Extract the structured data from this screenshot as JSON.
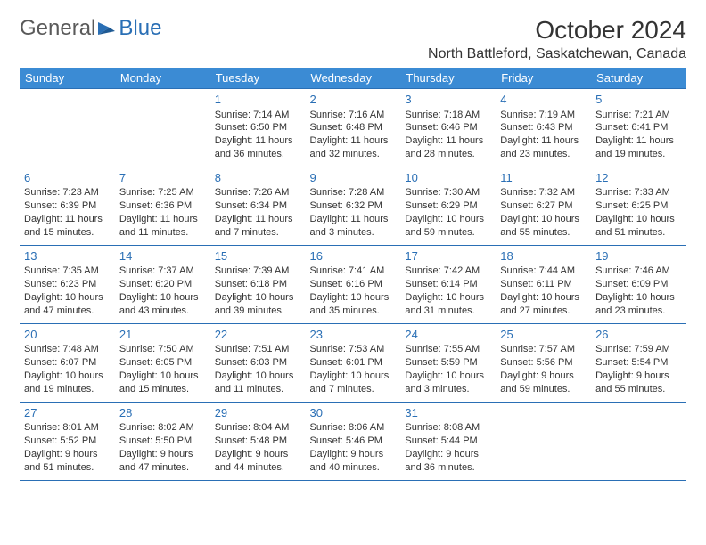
{
  "logo": {
    "text_general": "General",
    "text_blue": "Blue"
  },
  "title": {
    "month": "October 2024",
    "location": "North Battleford, Saskatchewan, Canada"
  },
  "colors": {
    "header_bg": "#3b8bd4",
    "header_text": "#ffffff",
    "cell_border": "#2a6fb5",
    "daynum": "#2a6fb5",
    "body_text": "#333333",
    "logo_gray": "#5a5a5a",
    "logo_blue": "#2a6fb5",
    "background": "#ffffff"
  },
  "daynames": [
    "Sunday",
    "Monday",
    "Tuesday",
    "Wednesday",
    "Thursday",
    "Friday",
    "Saturday"
  ],
  "weeks": [
    [
      {
        "day": "",
        "sunrise": "",
        "sunset": "",
        "daylight": ""
      },
      {
        "day": "",
        "sunrise": "",
        "sunset": "",
        "daylight": ""
      },
      {
        "day": "1",
        "sunrise": "Sunrise: 7:14 AM",
        "sunset": "Sunset: 6:50 PM",
        "daylight": "Daylight: 11 hours and 36 minutes."
      },
      {
        "day": "2",
        "sunrise": "Sunrise: 7:16 AM",
        "sunset": "Sunset: 6:48 PM",
        "daylight": "Daylight: 11 hours and 32 minutes."
      },
      {
        "day": "3",
        "sunrise": "Sunrise: 7:18 AM",
        "sunset": "Sunset: 6:46 PM",
        "daylight": "Daylight: 11 hours and 28 minutes."
      },
      {
        "day": "4",
        "sunrise": "Sunrise: 7:19 AM",
        "sunset": "Sunset: 6:43 PM",
        "daylight": "Daylight: 11 hours and 23 minutes."
      },
      {
        "day": "5",
        "sunrise": "Sunrise: 7:21 AM",
        "sunset": "Sunset: 6:41 PM",
        "daylight": "Daylight: 11 hours and 19 minutes."
      }
    ],
    [
      {
        "day": "6",
        "sunrise": "Sunrise: 7:23 AM",
        "sunset": "Sunset: 6:39 PM",
        "daylight": "Daylight: 11 hours and 15 minutes."
      },
      {
        "day": "7",
        "sunrise": "Sunrise: 7:25 AM",
        "sunset": "Sunset: 6:36 PM",
        "daylight": "Daylight: 11 hours and 11 minutes."
      },
      {
        "day": "8",
        "sunrise": "Sunrise: 7:26 AM",
        "sunset": "Sunset: 6:34 PM",
        "daylight": "Daylight: 11 hours and 7 minutes."
      },
      {
        "day": "9",
        "sunrise": "Sunrise: 7:28 AM",
        "sunset": "Sunset: 6:32 PM",
        "daylight": "Daylight: 11 hours and 3 minutes."
      },
      {
        "day": "10",
        "sunrise": "Sunrise: 7:30 AM",
        "sunset": "Sunset: 6:29 PM",
        "daylight": "Daylight: 10 hours and 59 minutes."
      },
      {
        "day": "11",
        "sunrise": "Sunrise: 7:32 AM",
        "sunset": "Sunset: 6:27 PM",
        "daylight": "Daylight: 10 hours and 55 minutes."
      },
      {
        "day": "12",
        "sunrise": "Sunrise: 7:33 AM",
        "sunset": "Sunset: 6:25 PM",
        "daylight": "Daylight: 10 hours and 51 minutes."
      }
    ],
    [
      {
        "day": "13",
        "sunrise": "Sunrise: 7:35 AM",
        "sunset": "Sunset: 6:23 PM",
        "daylight": "Daylight: 10 hours and 47 minutes."
      },
      {
        "day": "14",
        "sunrise": "Sunrise: 7:37 AM",
        "sunset": "Sunset: 6:20 PM",
        "daylight": "Daylight: 10 hours and 43 minutes."
      },
      {
        "day": "15",
        "sunrise": "Sunrise: 7:39 AM",
        "sunset": "Sunset: 6:18 PM",
        "daylight": "Daylight: 10 hours and 39 minutes."
      },
      {
        "day": "16",
        "sunrise": "Sunrise: 7:41 AM",
        "sunset": "Sunset: 6:16 PM",
        "daylight": "Daylight: 10 hours and 35 minutes."
      },
      {
        "day": "17",
        "sunrise": "Sunrise: 7:42 AM",
        "sunset": "Sunset: 6:14 PM",
        "daylight": "Daylight: 10 hours and 31 minutes."
      },
      {
        "day": "18",
        "sunrise": "Sunrise: 7:44 AM",
        "sunset": "Sunset: 6:11 PM",
        "daylight": "Daylight: 10 hours and 27 minutes."
      },
      {
        "day": "19",
        "sunrise": "Sunrise: 7:46 AM",
        "sunset": "Sunset: 6:09 PM",
        "daylight": "Daylight: 10 hours and 23 minutes."
      }
    ],
    [
      {
        "day": "20",
        "sunrise": "Sunrise: 7:48 AM",
        "sunset": "Sunset: 6:07 PM",
        "daylight": "Daylight: 10 hours and 19 minutes."
      },
      {
        "day": "21",
        "sunrise": "Sunrise: 7:50 AM",
        "sunset": "Sunset: 6:05 PM",
        "daylight": "Daylight: 10 hours and 15 minutes."
      },
      {
        "day": "22",
        "sunrise": "Sunrise: 7:51 AM",
        "sunset": "Sunset: 6:03 PM",
        "daylight": "Daylight: 10 hours and 11 minutes."
      },
      {
        "day": "23",
        "sunrise": "Sunrise: 7:53 AM",
        "sunset": "Sunset: 6:01 PM",
        "daylight": "Daylight: 10 hours and 7 minutes."
      },
      {
        "day": "24",
        "sunrise": "Sunrise: 7:55 AM",
        "sunset": "Sunset: 5:59 PM",
        "daylight": "Daylight: 10 hours and 3 minutes."
      },
      {
        "day": "25",
        "sunrise": "Sunrise: 7:57 AM",
        "sunset": "Sunset: 5:56 PM",
        "daylight": "Daylight: 9 hours and 59 minutes."
      },
      {
        "day": "26",
        "sunrise": "Sunrise: 7:59 AM",
        "sunset": "Sunset: 5:54 PM",
        "daylight": "Daylight: 9 hours and 55 minutes."
      }
    ],
    [
      {
        "day": "27",
        "sunrise": "Sunrise: 8:01 AM",
        "sunset": "Sunset: 5:52 PM",
        "daylight": "Daylight: 9 hours and 51 minutes."
      },
      {
        "day": "28",
        "sunrise": "Sunrise: 8:02 AM",
        "sunset": "Sunset: 5:50 PM",
        "daylight": "Daylight: 9 hours and 47 minutes."
      },
      {
        "day": "29",
        "sunrise": "Sunrise: 8:04 AM",
        "sunset": "Sunset: 5:48 PM",
        "daylight": "Daylight: 9 hours and 44 minutes."
      },
      {
        "day": "30",
        "sunrise": "Sunrise: 8:06 AM",
        "sunset": "Sunset: 5:46 PM",
        "daylight": "Daylight: 9 hours and 40 minutes."
      },
      {
        "day": "31",
        "sunrise": "Sunrise: 8:08 AM",
        "sunset": "Sunset: 5:44 PM",
        "daylight": "Daylight: 9 hours and 36 minutes."
      },
      {
        "day": "",
        "sunrise": "",
        "sunset": "",
        "daylight": ""
      },
      {
        "day": "",
        "sunrise": "",
        "sunset": "",
        "daylight": ""
      }
    ]
  ]
}
